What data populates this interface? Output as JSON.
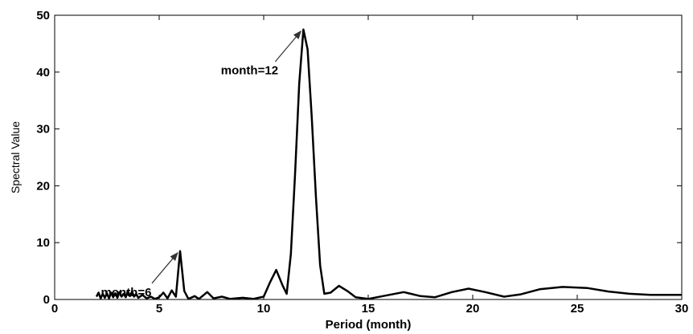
{
  "chart_data": {
    "type": "line",
    "x_label": "Period (month)",
    "y_label": "Spectral Value",
    "x": [
      2.0,
      2.1,
      2.2,
      2.3,
      2.4,
      2.5,
      2.6,
      2.7,
      2.8,
      2.9,
      3.0,
      3.1,
      3.2,
      3.3,
      3.4,
      3.5,
      3.6,
      3.7,
      3.8,
      3.9,
      4.0,
      4.2,
      4.4,
      4.6,
      4.8,
      5.0,
      5.2,
      5.4,
      5.6,
      5.8,
      6.0,
      6.2,
      6.4,
      6.7,
      6.9,
      7.3,
      7.6,
      8.0,
      8.4,
      9.0,
      9.5,
      10.0,
      10.3,
      10.6,
      10.9,
      11.1,
      11.3,
      11.5,
      11.7,
      11.9,
      12.1,
      12.3,
      12.5,
      12.7,
      12.9,
      13.2,
      13.6,
      14.0,
      14.4,
      15.0,
      16.0,
      16.7,
      17.5,
      18.2,
      19.0,
      19.8,
      20.6,
      21.5,
      22.3,
      23.2,
      24.3,
      25.5,
      26.5,
      27.5,
      28.5,
      30.0
    ],
    "values": [
      0.5,
      1.2,
      0.2,
      1.0,
      0.3,
      1.1,
      0.2,
      1.2,
      0.4,
      1.1,
      0.3,
      1.3,
      0.5,
      1.0,
      0.4,
      1.5,
      0.6,
      1.4,
      0.5,
      1.0,
      0.3,
      0.8,
      0.2,
      0.5,
      0.1,
      0.4,
      1.2,
      0.2,
      1.6,
      0.5,
      8.5,
      1.5,
      0.1,
      0.6,
      0.1,
      1.3,
      0.2,
      0.5,
      0.1,
      0.3,
      0.1,
      0.5,
      3.0,
      5.2,
      2.5,
      1.0,
      8,
      22,
      38,
      47.5,
      44,
      32,
      18,
      6,
      1.0,
      1.2,
      2.4,
      1.5,
      0.4,
      0.1,
      0.8,
      1.3,
      0.6,
      0.4,
      1.3,
      1.9,
      1.3,
      0.5,
      0.9,
      1.8,
      2.2,
      2.0,
      1.4,
      1.0,
      0.8,
      0.8
    ],
    "color": "#000000",
    "xlim": [
      0,
      30
    ],
    "xticks": [
      0,
      5,
      10,
      15,
      20,
      25,
      30
    ],
    "ylim": [
      0,
      50
    ],
    "yticks": [
      0,
      10,
      20,
      30,
      40,
      50
    ],
    "annotations": [
      {
        "text": "month=12",
        "x": 11.9,
        "y": 47.5
      },
      {
        "text": "month=6",
        "x": 6.0,
        "y": 8.5
      }
    ]
  }
}
